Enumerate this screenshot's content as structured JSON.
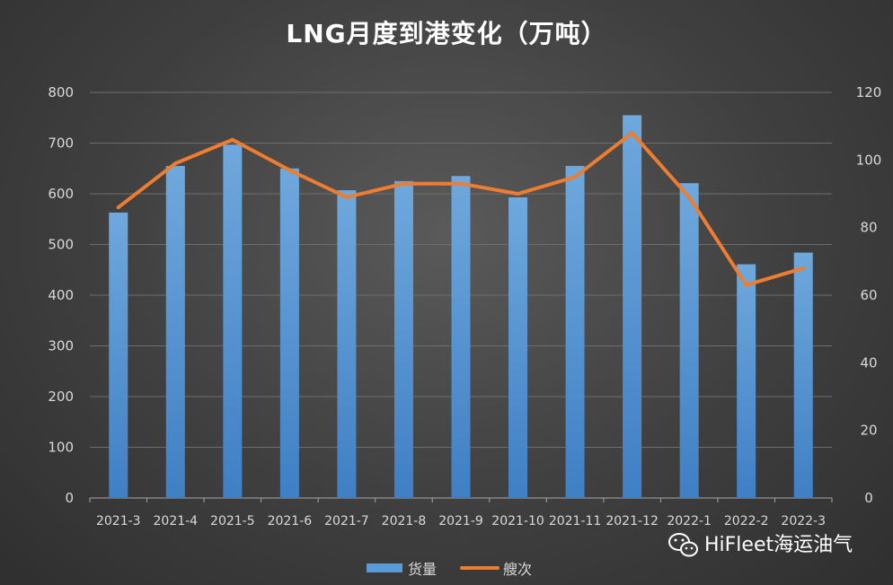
{
  "chart_data": {
    "type": "bar",
    "title": "LNG月度到港变化（万吨）",
    "categories": [
      "2021-3",
      "2021-4",
      "2021-5",
      "2021-6",
      "2021-7",
      "2021-8",
      "2021-9",
      "2021-10",
      "2021-11",
      "2021-12",
      "2022-1",
      "2022-2",
      "2022-3"
    ],
    "series": [
      {
        "name": "货量",
        "type": "bar",
        "axis": "left",
        "color": "#5b9bd5",
        "values": [
          563,
          655,
          697,
          650,
          607,
          625,
          635,
          593,
          655,
          755,
          621,
          461,
          484
        ]
      },
      {
        "name": "艘次",
        "type": "line",
        "axis": "right",
        "color": "#ed7d31",
        "values": [
          86,
          99,
          106,
          97,
          89,
          93,
          93,
          90,
          95,
          108,
          89,
          63,
          68
        ]
      }
    ],
    "ylim_left": [
      0,
      800
    ],
    "yticks_left": [
      "0",
      "100",
      "200",
      "300",
      "400",
      "500",
      "600",
      "700",
      "800"
    ],
    "ylim_right": [
      0,
      120
    ],
    "yticks_right": [
      "0",
      "20",
      "40",
      "60",
      "80",
      "100",
      "120"
    ],
    "grid": true,
    "legend": "bottom"
  },
  "watermark": {
    "text": "HiFleet海运油气",
    "icon": "wechat-icon"
  }
}
